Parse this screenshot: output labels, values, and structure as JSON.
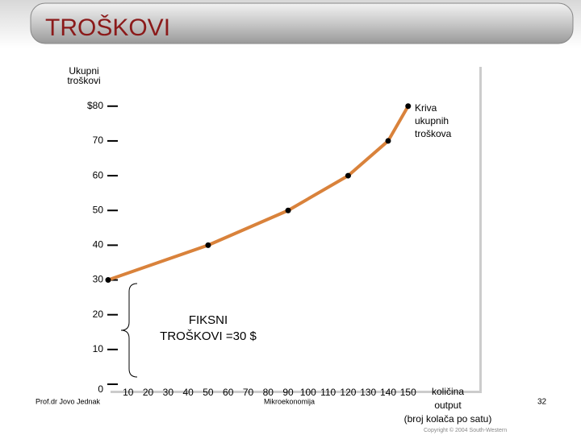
{
  "slide": {
    "title": "TROŠKOVI",
    "author": "Prof.dr Jovo Jednak",
    "course": "Mikroekonomija",
    "page": "32",
    "copyright": "Copyright © 2004 South-Western"
  },
  "chart_data": {
    "type": "line",
    "y_label": [
      "Ukupni",
      "troškovi"
    ],
    "x_label": [
      "količina",
      "output",
      "(broj kolača po satu)"
    ],
    "curve_label": [
      "Kriva",
      "ukupnih",
      "troškova"
    ],
    "annotation": [
      "FIKSNI",
      "TROŠKOVI =30 $"
    ],
    "x": [
      0,
      50,
      90,
      120,
      140,
      150
    ],
    "series": [
      {
        "color": "#d9823b",
        "values": [
          30,
          40,
          50,
          60,
          70,
          80
        ]
      }
    ],
    "xlim": [
      0,
      186
    ],
    "ylim": [
      0,
      92
    ],
    "xticks": [
      10,
      20,
      30,
      40,
      50,
      60,
      70,
      80,
      90,
      100,
      110,
      120,
      130,
      140,
      150
    ],
    "yticks": [
      0,
      10,
      20,
      30,
      40,
      50,
      60,
      70,
      {
        "value": 80,
        "label": "$80"
      }
    ]
  }
}
